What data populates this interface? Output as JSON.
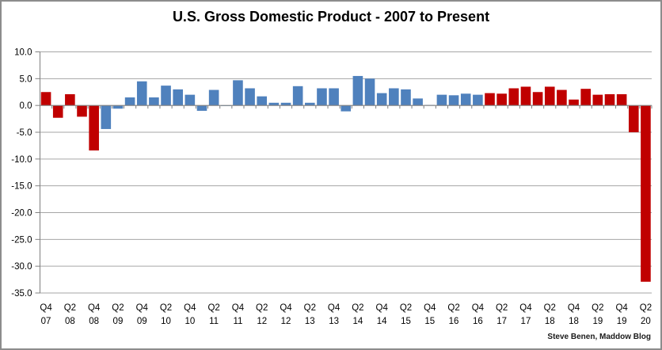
{
  "chart_data": {
    "type": "bar",
    "title": "U.S. Gross Domestic Product - 2007 to Present",
    "source_credit": "Steve Benen, Maddow Blog",
    "xlabel": "",
    "ylabel": "",
    "legend": {
      "shown": false
    },
    "grid": true,
    "y_axis": {
      "min": -35,
      "max": 10,
      "tick_step": 5,
      "tick_labels": [
        "10.0",
        "5.0",
        "0.0",
        "-5.0",
        "-10.0",
        "-15.0",
        "-20.0",
        "-25.0",
        "-30.0",
        "-35.0"
      ]
    },
    "x_axis": {
      "label_interval": 2,
      "tick_labels_shown": [
        "Q4 07",
        "Q2 08",
        "Q4 08",
        "Q2 09",
        "Q4 09",
        "Q2 10",
        "Q4 10",
        "Q2 11",
        "Q4 11",
        "Q2 12",
        "Q4 12",
        "Q2 13",
        "Q4 13",
        "Q2 14",
        "Q4 14",
        "Q2 15",
        "Q4 15",
        "Q2 16",
        "Q4 16",
        "Q2 17",
        "Q4 17",
        "Q2 18",
        "Q4 18",
        "Q2 19",
        "Q4 19",
        "Q2 20"
      ]
    },
    "palette": {
      "red": "#C00000",
      "blue": "#4F81BD",
      "gridline": "#A6A6A6",
      "axis": "#808080",
      "frame_border": "#8c8c8c"
    },
    "categories": [
      "Q4 07",
      "Q1 08",
      "Q2 08",
      "Q3 08",
      "Q4 08",
      "Q1 09",
      "Q2 09",
      "Q3 09",
      "Q4 09",
      "Q1 10",
      "Q2 10",
      "Q3 10",
      "Q4 10",
      "Q1 11",
      "Q2 11",
      "Q3 11",
      "Q4 11",
      "Q1 12",
      "Q2 12",
      "Q3 12",
      "Q4 12",
      "Q1 13",
      "Q2 13",
      "Q3 13",
      "Q4 13",
      "Q1 14",
      "Q2 14",
      "Q3 14",
      "Q4 14",
      "Q1 15",
      "Q2 15",
      "Q3 15",
      "Q4 15",
      "Q1 16",
      "Q2 16",
      "Q3 16",
      "Q4 16",
      "Q1 17",
      "Q2 17",
      "Q3 17",
      "Q4 17",
      "Q1 18",
      "Q2 18",
      "Q3 18",
      "Q4 18",
      "Q1 19",
      "Q2 19",
      "Q3 19",
      "Q4 19",
      "Q1 20",
      "Q2 20"
    ],
    "values": [
      2.5,
      -2.3,
      2.1,
      -2.1,
      -8.4,
      -4.4,
      -0.6,
      1.5,
      4.5,
      1.5,
      3.7,
      3.0,
      2.0,
      -1.0,
      2.9,
      -0.1,
      4.7,
      3.2,
      1.7,
      0.5,
      0.5,
      3.6,
      0.5,
      3.2,
      3.2,
      -1.1,
      5.5,
      5.0,
      2.3,
      3.2,
      3.0,
      1.3,
      0.1,
      2.0,
      1.9,
      2.2,
      2.0,
      2.3,
      2.2,
      3.2,
      3.5,
      2.5,
      3.5,
      2.9,
      1.1,
      3.1,
      2.0,
      2.1,
      2.1,
      -5.0,
      -32.9
    ],
    "bar_colors": [
      "red",
      "red",
      "red",
      "red",
      "red",
      "blue",
      "blue",
      "blue",
      "blue",
      "blue",
      "blue",
      "blue",
      "blue",
      "blue",
      "blue",
      "blue",
      "blue",
      "blue",
      "blue",
      "blue",
      "blue",
      "blue",
      "blue",
      "blue",
      "blue",
      "blue",
      "blue",
      "blue",
      "blue",
      "blue",
      "blue",
      "blue",
      "blue",
      "blue",
      "blue",
      "blue",
      "blue",
      "red",
      "red",
      "red",
      "red",
      "red",
      "red",
      "red",
      "red",
      "red",
      "red",
      "red",
      "red",
      "red",
      "red"
    ]
  }
}
